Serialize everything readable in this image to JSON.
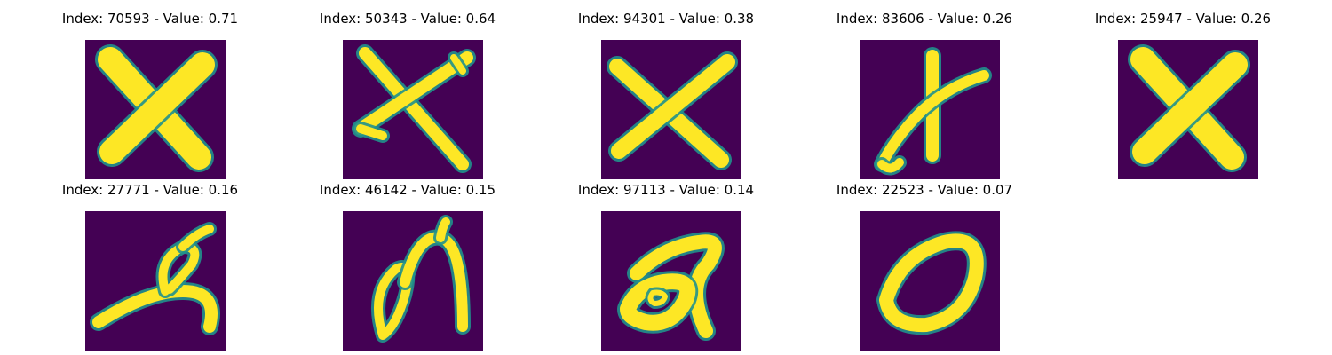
{
  "colors": {
    "background": "#440154",
    "edge": "#21918c",
    "foreground": "#fde725",
    "title_text": "#000000"
  },
  "panels": [
    {
      "title": "Index: 70593 - Value: 0.71",
      "index": 70593,
      "value": 0.71,
      "glyph": "x-bold"
    },
    {
      "title": "Index: 50343 - Value: 0.64",
      "index": 50343,
      "value": 0.64,
      "glyph": "x-thin"
    },
    {
      "title": "Index: 94301 - Value: 0.38",
      "index": 94301,
      "value": 0.38,
      "glyph": "x-clean"
    },
    {
      "title": "Index: 83606 - Value: 0.26",
      "index": 83606,
      "value": 0.26,
      "glyph": "x-cursive"
    },
    {
      "title": "Index: 25947 - Value: 0.26",
      "index": 25947,
      "value": 0.26,
      "glyph": "x-bold"
    },
    {
      "title": "Index: 27771 - Value: 0.16",
      "index": 27771,
      "value": 0.16,
      "glyph": "loop-slant"
    },
    {
      "title": "Index: 46142 - Value: 0.15",
      "index": 46142,
      "value": 0.15,
      "glyph": "loop-n"
    },
    {
      "title": "Index: 97113 - Value: 0.14",
      "index": 97113,
      "value": 0.14,
      "glyph": "blob"
    },
    {
      "title": "Index: 22523 - Value: 0.07",
      "index": 22523,
      "value": 0.07,
      "glyph": "zero"
    }
  ]
}
